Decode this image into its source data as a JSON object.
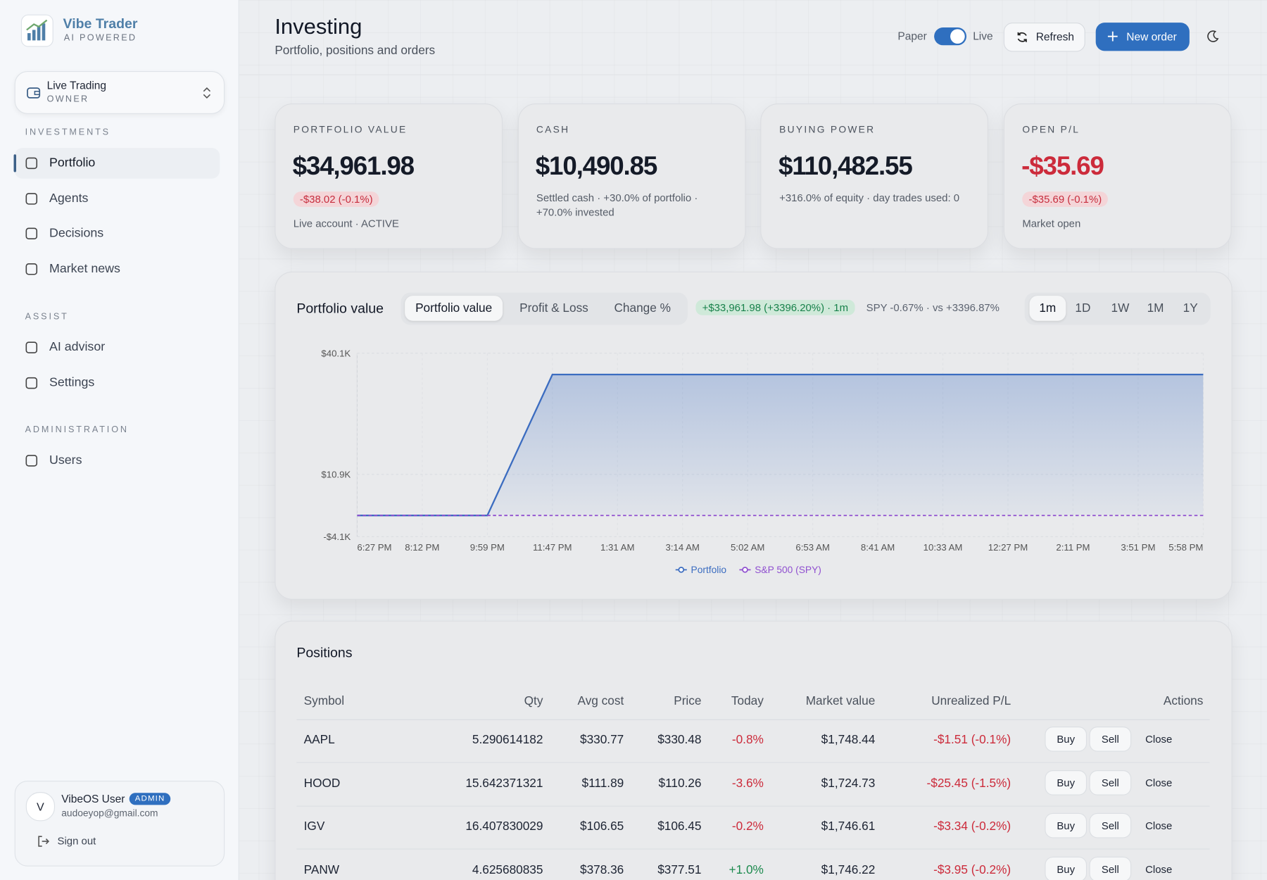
{
  "sidebar": {
    "brand": "Vibe Trader",
    "tagline": "AI POWERED",
    "account": {
      "name": "Live Trading",
      "role": "OWNER"
    },
    "sections": [
      {
        "title": "INVESTMENTS",
        "items": [
          "Portfolio",
          "Agents",
          "Decisions",
          "Market news"
        ]
      },
      {
        "title": "ASSIST",
        "items": [
          "AI advisor",
          "Settings"
        ]
      },
      {
        "title": "ADMINISTRATION",
        "items": [
          "Users"
        ]
      }
    ],
    "user": {
      "initial": "V",
      "name": "VibeOS User",
      "badge": "ADMIN",
      "email": "audoeyop@gmail.com",
      "sign_out": "Sign out"
    }
  },
  "header": {
    "title": "Investing",
    "subtitle": "Portfolio, positions and orders",
    "paper": "Paper",
    "live": "Live",
    "refresh": "Refresh",
    "new_order": "New order"
  },
  "cards": [
    {
      "label": "PORTFOLIO VALUE",
      "value": "$34,961.98",
      "badge": "-$38.02 (-0.1%)",
      "note": "Live account · ACTIVE"
    },
    {
      "label": "CASH",
      "value": "$10,490.85",
      "note": "Settled cash · +30.0% of portfolio · +70.0% invested"
    },
    {
      "label": "BUYING POWER",
      "value": "$110,482.55",
      "note": "+316.0% of equity · day trades used: 0"
    },
    {
      "label": "OPEN P/L",
      "value": "-$35.69",
      "badge": "-$35.69 (-0.1%)",
      "note": "Market open"
    }
  ],
  "chart_data": {
    "type": "line",
    "title": "Portfolio value",
    "tabs": [
      "Portfolio value",
      "Profit & Loss",
      "Change %"
    ],
    "summary": "+$33,961.98 (+3396.20%) · 1m",
    "benchmark": "SPY -0.67% · vs +3396.87%",
    "ranges": [
      "1m",
      "1D",
      "1W",
      "1M",
      "1Y"
    ],
    "categories": [
      "6:27 PM",
      "8:12 PM",
      "9:59 PM",
      "11:47 PM",
      "1:31 AM",
      "3:14 AM",
      "5:02 AM",
      "6:53 AM",
      "8:41 AM",
      "10:33 AM",
      "12:27 PM",
      "2:11 PM",
      "3:51 PM",
      "5:58 PM"
    ],
    "series": [
      {
        "name": "Portfolio",
        "color": "#3b6cc0",
        "values": [
          1000,
          1000,
          1000,
          34961.98,
          34961.98,
          34961.98,
          34961.98,
          34961.98,
          34961.98,
          34961.98,
          34961.98,
          34961.98,
          34961.98,
          34961.98
        ]
      },
      {
        "name": "S&P 500 (SPY)",
        "color": "#9050d0",
        "dashed": true,
        "values": [
          1000,
          1000,
          1000,
          995,
          995,
          995,
          995,
          995,
          995,
          995,
          994,
          994,
          993,
          993
        ]
      }
    ],
    "ylim": [
      -4100,
      40100
    ],
    "yticks": [
      {
        "value": -4100,
        "label": "-$4.1K"
      },
      {
        "value": 10900,
        "label": "$10.9K"
      },
      {
        "value": 40100,
        "label": "$40.1K"
      }
    ]
  },
  "positions": {
    "title": "Positions",
    "columns": [
      "Symbol",
      "Qty",
      "Avg cost",
      "Price",
      "Today",
      "Market value",
      "Unrealized P/L",
      "Actions"
    ],
    "rows": [
      [
        "AAPL",
        "5.290614182",
        "$330.77",
        "$330.48",
        "-0.8%",
        "$1,748.44",
        "-$1.51 (-0.1%)"
      ],
      [
        "HOOD",
        "15.642371321",
        "$111.89",
        "$110.26",
        "-3.6%",
        "$1,724.73",
        "-$25.45 (-1.5%)"
      ],
      [
        "IGV",
        "16.407830029",
        "$106.65",
        "$106.45",
        "-0.2%",
        "$1,746.61",
        "-$3.34 (-0.2%)"
      ],
      [
        "PANW",
        "4.625680835",
        "$378.36",
        "$377.51",
        "+1.0%",
        "$1,746.22",
        "-$3.95 (-0.2%)"
      ]
    ],
    "actions": [
      "Buy",
      "Sell",
      "Close"
    ]
  }
}
